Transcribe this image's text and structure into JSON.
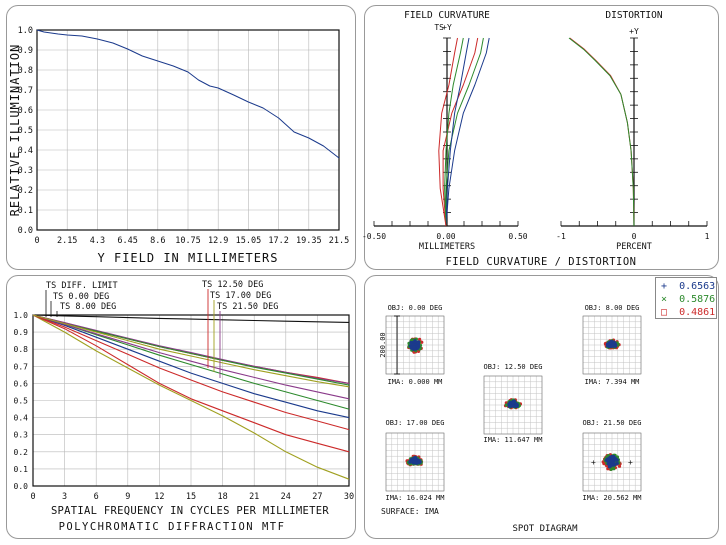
{
  "chart_data": [
    {
      "type": "line",
      "id": "relative-illumination",
      "title": "",
      "xlabel": "Y FIELD IN MILLIMETERS",
      "ylabel": "RELATIVE ILLUMINATION",
      "xlim": [
        0,
        21.5
      ],
      "ylim": [
        0,
        1.0
      ],
      "x_ticks": [
        "0",
        "2.15",
        "4.3",
        "6.45",
        "8.6",
        "10.75",
        "12.9",
        "15.05",
        "17.2",
        "19.35",
        "21.5"
      ],
      "y_ticks": [
        "0.0",
        "0.1",
        "0.2",
        "0.3",
        "0.4",
        "0.5",
        "0.6",
        "0.7",
        "0.8",
        "0.9",
        "1.0"
      ],
      "grid": true,
      "series": [
        {
          "x": [
            0,
            0.5,
            1.5,
            2.15,
            3.2,
            4.3,
            5.4,
            6.45,
            7.5,
            8.6,
            9.7,
            10.75,
            11.5,
            12.3,
            12.9,
            14.0,
            15.05,
            16.1,
            17.2,
            18.3,
            19.35,
            20.4,
            21.5
          ],
          "y": [
            1.0,
            0.99,
            0.98,
            0.975,
            0.97,
            0.955,
            0.935,
            0.905,
            0.87,
            0.845,
            0.82,
            0.79,
            0.75,
            0.72,
            0.71,
            0.675,
            0.64,
            0.61,
            0.56,
            0.49,
            0.46,
            0.42,
            0.36
          ]
        }
      ]
    },
    {
      "type": "line",
      "id": "field-curvature",
      "title": "FIELD CURVATURE",
      "xlabel": "MILLIMETERS",
      "axis_top_label": "+Y",
      "ts_label": "TS",
      "xlim": [
        -0.5,
        0.5
      ],
      "x_ticks": [
        "-0.50",
        "0.00",
        "0.50"
      ],
      "ylim": [
        0,
        1
      ],
      "series": [
        {
          "color": "#1b3a8c",
          "x": [
            0.0,
            0.02,
            0.06,
            0.12,
            0.2,
            0.28,
            0.3
          ],
          "y": [
            0,
            0.2,
            0.4,
            0.6,
            0.75,
            0.92,
            1.0
          ]
        },
        {
          "color": "#2d8a2d",
          "x": [
            0.0,
            0.0,
            0.02,
            0.08,
            0.16,
            0.24,
            0.26
          ],
          "y": [
            0,
            0.2,
            0.4,
            0.6,
            0.75,
            0.92,
            1.0
          ]
        },
        {
          "color": "#cc2a2a",
          "x": [
            0.0,
            -0.02,
            -0.02,
            0.04,
            0.12,
            0.2,
            0.22
          ],
          "y": [
            0,
            0.2,
            0.4,
            0.6,
            0.75,
            0.92,
            1.0
          ]
        },
        {
          "color": "#1b3a8c",
          "x": [
            0.0,
            0.01,
            0.03,
            0.06,
            0.1,
            0.14,
            0.16
          ],
          "y": [
            0,
            0.2,
            0.4,
            0.6,
            0.75,
            0.92,
            1.0
          ]
        },
        {
          "color": "#2d8a2d",
          "x": [
            0.0,
            -0.01,
            0.0,
            0.02,
            0.05,
            0.1,
            0.12
          ],
          "y": [
            0,
            0.2,
            0.4,
            0.6,
            0.75,
            0.92,
            1.0
          ]
        },
        {
          "color": "#cc2a2a",
          "x": [
            0.0,
            -0.04,
            -0.05,
            -0.03,
            0.02,
            0.06,
            0.08
          ],
          "y": [
            0,
            0.2,
            0.4,
            0.6,
            0.75,
            0.92,
            1.0
          ]
        }
      ]
    },
    {
      "type": "line",
      "id": "distortion",
      "title": "DISTORTION",
      "xlabel": "PERCENT",
      "axis_top_label": "+Y",
      "xlim": [
        -1,
        1
      ],
      "x_ticks": [
        "-1",
        "0",
        "1"
      ],
      "ylim": [
        0,
        1
      ],
      "series": [
        {
          "color": "#cc2a2a",
          "x": [
            0,
            -0.01,
            -0.04,
            -0.09,
            -0.18,
            -0.32,
            -0.52,
            -0.68,
            -0.88
          ],
          "y": [
            0,
            0.2,
            0.4,
            0.55,
            0.7,
            0.8,
            0.88,
            0.94,
            1.0
          ]
        },
        {
          "color": "#2d8a2d",
          "x": [
            0,
            -0.01,
            -0.04,
            -0.09,
            -0.18,
            -0.33,
            -0.53,
            -0.69,
            -0.89
          ],
          "y": [
            0,
            0.2,
            0.4,
            0.55,
            0.7,
            0.8,
            0.88,
            0.94,
            1.0
          ]
        }
      ]
    },
    {
      "type": "line",
      "id": "polychromatic-mtf",
      "title": "POLYCHROMATIC DIFFRACTION MTF",
      "xlabel": "SPATIAL FREQUENCY IN CYCLES PER MILLIMETER",
      "xlim": [
        0,
        30
      ],
      "ylim": [
        0,
        1.0
      ],
      "x_ticks": [
        "0",
        "3",
        "6",
        "9",
        "12",
        "15",
        "18",
        "21",
        "24",
        "27",
        "30"
      ],
      "y_ticks": [
        "0.0",
        "0.1",
        "0.2",
        "0.3",
        "0.4",
        "0.5",
        "0.6",
        "0.7",
        "0.8",
        "0.9",
        "1.0"
      ],
      "grid": true,
      "legend_left": [
        "TS DIFF. LIMIT",
        "TS 0.00 DEG",
        "TS 8.00 DEG"
      ],
      "legend_right": [
        "TS 12.50 DEG",
        "TS 17.00 DEG",
        "TS 21.50 DEG"
      ],
      "series": [
        {
          "name": "TS DIFF. LIMIT",
          "color": "#111111",
          "x": [
            0,
            3,
            6,
            9,
            12,
            15,
            18,
            21,
            24,
            27,
            30
          ],
          "y": [
            1.0,
            0.995,
            0.99,
            0.985,
            0.98,
            0.976,
            0.972,
            0.968,
            0.964,
            0.96,
            0.957
          ]
        },
        {
          "name": "TS 0.00 DEG",
          "color": "#1b3a8c",
          "x": [
            0,
            3,
            6,
            9,
            12,
            15,
            18,
            21,
            24,
            27,
            30
          ],
          "y": [
            1.0,
            0.94,
            0.87,
            0.8,
            0.73,
            0.66,
            0.6,
            0.54,
            0.49,
            0.44,
            0.4
          ]
        },
        {
          "name": "TS 8.00 DEG",
          "color": "#2d8a2d",
          "x": [
            0,
            3,
            6,
            9,
            12,
            15,
            18,
            21,
            24,
            27,
            30
          ],
          "y": [
            1.0,
            0.945,
            0.885,
            0.825,
            0.765,
            0.71,
            0.655,
            0.6,
            0.55,
            0.5,
            0.45
          ]
        },
        {
          "name": "TS 12.50 DEG",
          "color": "#cc2a2a",
          "x": [
            0,
            3,
            6,
            9,
            12,
            15,
            18,
            21,
            24,
            27,
            30
          ],
          "y": [
            1.0,
            0.955,
            0.905,
            0.86,
            0.815,
            0.775,
            0.735,
            0.7,
            0.665,
            0.635,
            0.6
          ]
        },
        {
          "name": "TS 17.00 DEG",
          "color": "#a0a020",
          "x": [
            0,
            3,
            6,
            9,
            12,
            15,
            18,
            21,
            24,
            27,
            30
          ],
          "y": [
            1.0,
            0.9,
            0.79,
            0.69,
            0.59,
            0.5,
            0.41,
            0.31,
            0.2,
            0.11,
            0.04
          ]
        },
        {
          "name": "TS 21.50 DEG",
          "color": "#8a3a8a",
          "x": [
            0,
            3,
            6,
            9,
            12,
            15,
            18,
            21,
            24,
            27,
            30
          ],
          "y": [
            1.0,
            0.955,
            0.91,
            0.865,
            0.82,
            0.78,
            0.74,
            0.7,
            0.665,
            0.63,
            0.6
          ]
        },
        {
          "name": "",
          "color": "#cc2a2a",
          "x": [
            0,
            3,
            6,
            9,
            12,
            15,
            18,
            21,
            24,
            27,
            30
          ],
          "y": [
            1.0,
            0.93,
            0.85,
            0.77,
            0.69,
            0.62,
            0.55,
            0.49,
            0.43,
            0.38,
            0.33
          ]
        },
        {
          "name": "",
          "color": "#cc2a2a",
          "x": [
            0,
            3,
            6,
            9,
            12,
            15,
            18,
            21,
            24,
            27,
            30
          ],
          "y": [
            1.0,
            0.92,
            0.82,
            0.71,
            0.6,
            0.51,
            0.44,
            0.37,
            0.3,
            0.25,
            0.2
          ]
        },
        {
          "name": "",
          "color": "#2d8a2d",
          "x": [
            0,
            3,
            6,
            9,
            12,
            15,
            18,
            21,
            24,
            27,
            30
          ],
          "y": [
            1.0,
            0.95,
            0.905,
            0.86,
            0.815,
            0.775,
            0.735,
            0.695,
            0.66,
            0.625,
            0.59
          ]
        },
        {
          "name": "",
          "color": "#8a3a8a",
          "x": [
            0,
            3,
            6,
            9,
            12,
            15,
            18,
            21,
            24,
            27,
            30
          ],
          "y": [
            1.0,
            0.945,
            0.89,
            0.835,
            0.78,
            0.73,
            0.68,
            0.635,
            0.59,
            0.55,
            0.51
          ]
        },
        {
          "name": "",
          "color": "#a0a020",
          "x": [
            0,
            3,
            6,
            9,
            12,
            15,
            18,
            21,
            24,
            27,
            30
          ],
          "y": [
            1.0,
            0.95,
            0.9,
            0.85,
            0.8,
            0.76,
            0.72,
            0.68,
            0.645,
            0.61,
            0.58
          ]
        }
      ]
    },
    {
      "type": "scatter",
      "id": "spot-diagram",
      "title": "SPOT DIAGRAM",
      "surface_label": "SURFACE: IMA",
      "scale_label": "200.00",
      "wavelengths": [
        {
          "symbol": "+",
          "value": "0.6563",
          "color": "#1b3a8c"
        },
        {
          "symbol": "×",
          "value": "0.5876",
          "color": "#2d8a2d"
        },
        {
          "symbol": "□",
          "value": "0.4861",
          "color": "#cc2a2a"
        }
      ],
      "fields": [
        {
          "obj": "OBJ: 0.00 DEG",
          "ima": "IMA: 0.000 MM",
          "spread": 0.12,
          "tail": 0.0
        },
        {
          "obj": "OBJ: 8.00 DEG",
          "ima": "IMA: 7.394 MM",
          "spread": 0.12,
          "tail": 0.2
        },
        {
          "obj": "OBJ: 12.50 DEG",
          "ima": "IMA: 11.647 MM",
          "spread": 0.14,
          "tail": 0.28
        },
        {
          "obj": "OBJ: 17.00 DEG",
          "ima": "IMA: 16.024 MM",
          "spread": 0.16,
          "tail": 0.33
        },
        {
          "obj": "OBJ: 21.50 DEG",
          "ima": "IMA: 20.562 MM",
          "spread": 0.2,
          "tail": 0.0
        }
      ]
    }
  ],
  "fc_bottom_label": "FIELD CURVATURE / DISTORTION"
}
